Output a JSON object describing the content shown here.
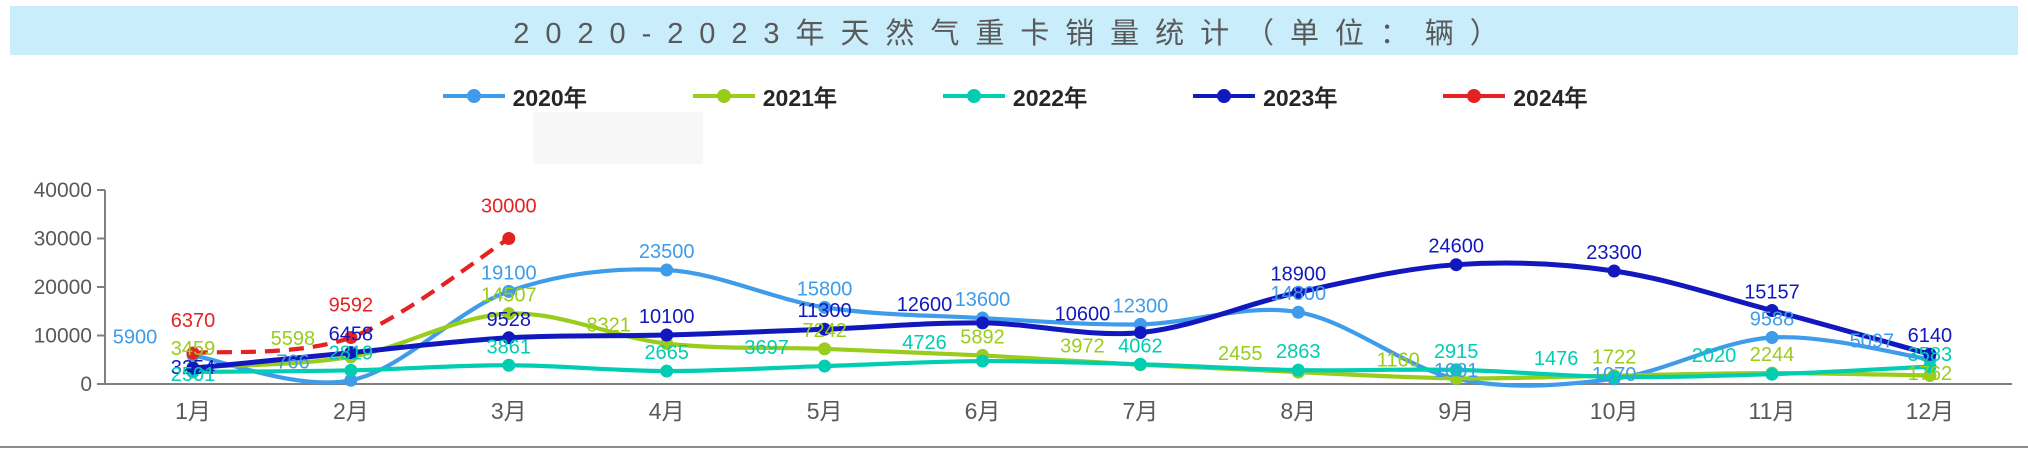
{
  "title": "2020-2023年天然气重卡销量统计（单位：辆）",
  "chart_data": {
    "type": "line",
    "title": "2020-2023年天然气重卡销量统计（单位：辆）",
    "categories": [
      "1月",
      "2月",
      "3月",
      "4月",
      "5月",
      "6月",
      "7月",
      "8月",
      "9月",
      "10月",
      "11月",
      "12月"
    ],
    "series": [
      {
        "name": "2020年",
        "color": "#3e9cea",
        "dashed": false,
        "values": [
          5900,
          766,
          19100,
          23500,
          15800,
          13600,
          12300,
          14800,
          1081,
          1070,
          9588,
          5097
        ]
      },
      {
        "name": "2021年",
        "color": "#9acc1b",
        "dashed": false,
        "values": [
          3459,
          5598,
          14507,
          8321,
          7242,
          5892,
          3972,
          2455,
          1160,
          1722,
          2244,
          1762
        ]
      },
      {
        "name": "2022年",
        "color": "#00cdb2",
        "dashed": false,
        "values": [
          2501,
          2819,
          3861,
          2665,
          3697,
          4726,
          4062,
          2863,
          2915,
          1476,
          2020,
          3583
        ]
      },
      {
        "name": "2023年",
        "color": "#1118be",
        "dashed": false,
        "values": [
          3254,
          6458,
          9528,
          10100,
          11300,
          12600,
          10600,
          18900,
          24600,
          23300,
          15157,
          6140
        ]
      },
      {
        "name": "2024年",
        "color": "#e52222",
        "dashed": true,
        "values": [
          6370,
          9592,
          30000,
          null,
          null,
          null,
          null,
          null,
          null,
          null,
          null,
          null
        ]
      }
    ],
    "xlabel": "",
    "ylabel": "",
    "ylim": [
      0,
      40000
    ],
    "y_ticks": [
      0,
      10000,
      20000,
      30000,
      40000
    ],
    "grid": false,
    "legend_position": "top",
    "data_labels_shown": true
  },
  "colors": {
    "banner_bg": "#c9edfb",
    "banner_text": "#595959",
    "axis": "#808080",
    "tick_text": "#595959"
  }
}
